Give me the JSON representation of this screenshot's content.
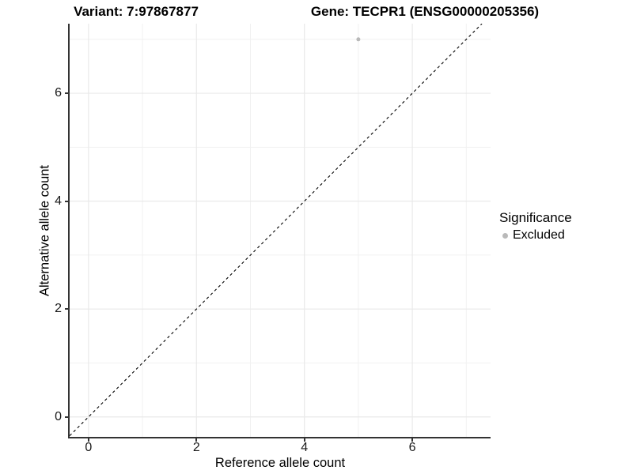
{
  "chart_data": {
    "type": "scatter",
    "title_variant": "Variant: 7:97867877",
    "title_gene": "Gene: TECPR1 (ENSG00000205356)",
    "xlabel": "Reference allele count",
    "ylabel": "Alternative allele count",
    "xlim": [
      -0.35,
      7.45
    ],
    "ylim": [
      -0.37,
      7.29
    ],
    "x_major_ticks": [
      0,
      2,
      4,
      6
    ],
    "y_major_ticks": [
      0,
      2,
      4,
      6
    ],
    "x_minor_gridlines": [
      1,
      3,
      5,
      7
    ],
    "y_minor_gridlines": [
      1,
      3,
      5,
      7
    ],
    "grid": true,
    "identity_line": {
      "style": "dashed",
      "slope": 1,
      "intercept": 0
    },
    "points": [
      {
        "x": 5,
        "y": 7,
        "significance": "Excluded"
      }
    ],
    "legend": {
      "title": "Significance",
      "position": "right",
      "entries": [
        {
          "label": "Excluded",
          "color": "#b9b9b9"
        }
      ]
    },
    "colors": {
      "point": "#b9b9b9",
      "axis": "#333333",
      "tick_label": "#1a1a1a",
      "grid_major": "#e9e9e9",
      "grid_minor": "#f1f1f1",
      "identity_line": "#000000",
      "background": "#ffffff"
    }
  }
}
